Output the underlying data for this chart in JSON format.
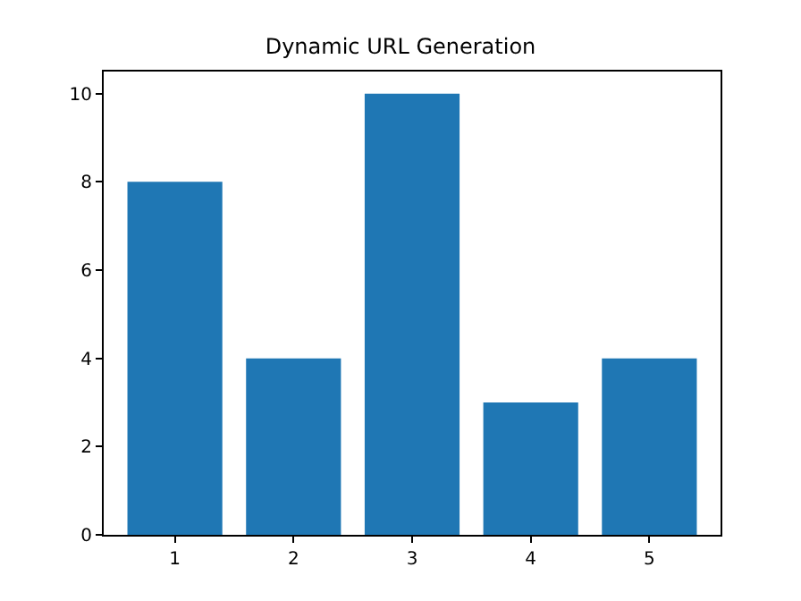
{
  "chart_data": {
    "type": "bar",
    "title": "Dynamic URL Generation",
    "categories": [
      "1",
      "2",
      "3",
      "4",
      "5"
    ],
    "values": [
      8,
      4,
      10,
      3,
      4
    ],
    "color": "#1f77b4",
    "ylim": [
      0,
      10.5
    ],
    "yticks": [
      0,
      2,
      4,
      6,
      8,
      10
    ]
  }
}
